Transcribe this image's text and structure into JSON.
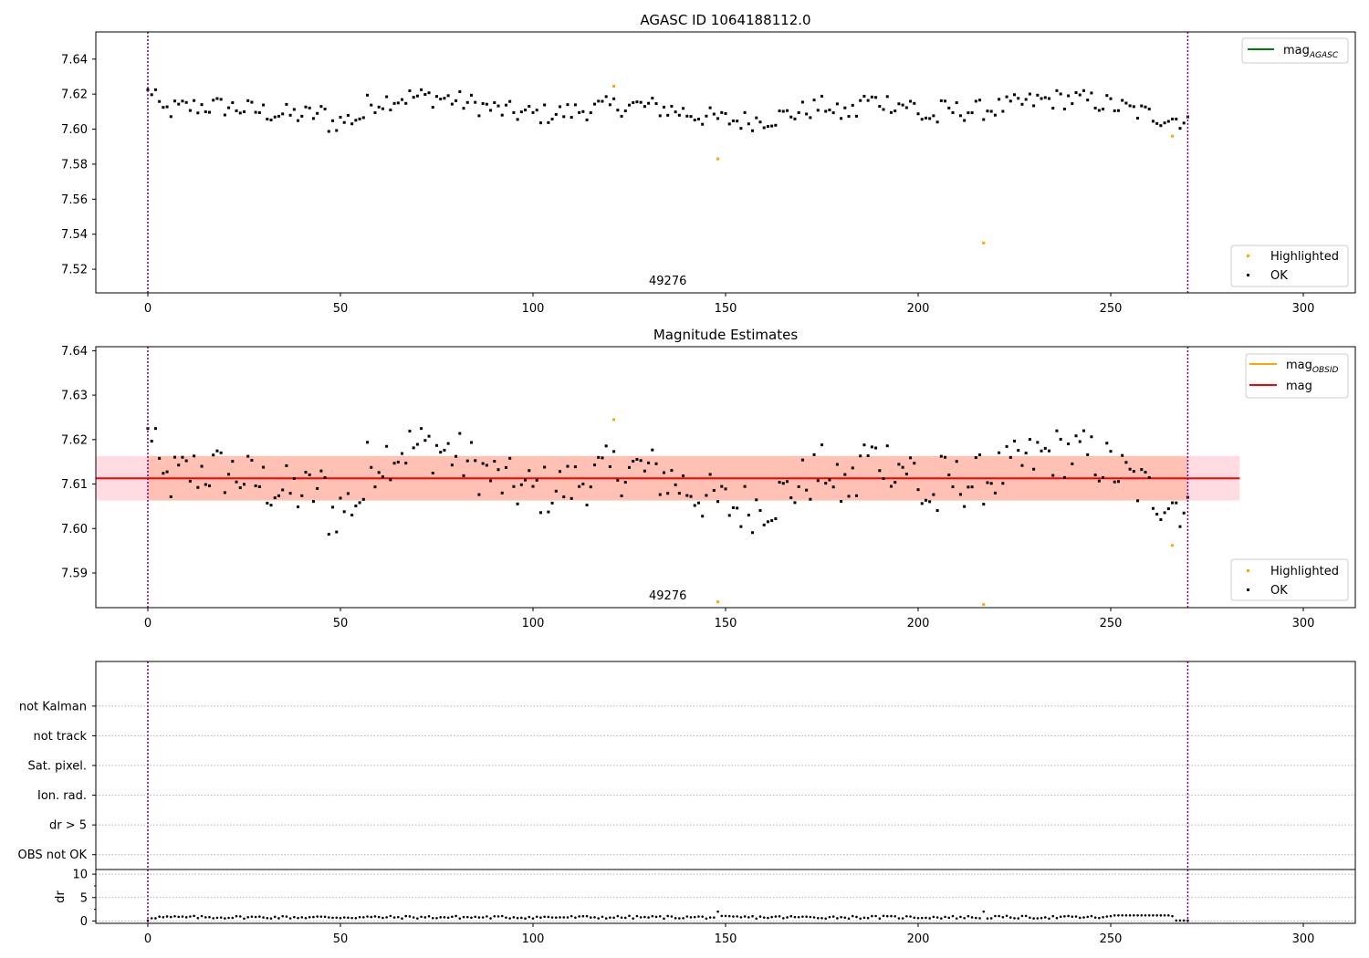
{
  "colors": {
    "ok": "#000000",
    "highlighted": "#ffa500",
    "mag_agasc": "#008000",
    "mag_obsid": "#ffa500",
    "mag": "#ff0000",
    "band_red": "#ffc0cb",
    "band_orange": "#ffa07a",
    "obs_boundary": "#800080",
    "grid": "#b0b0b0"
  },
  "chart_data": [
    {
      "type": "scatter",
      "title": "AGASC ID 1064188112.0",
      "xlim": [
        -13.5,
        313.5
      ],
      "ylim": [
        7.5065,
        7.6555
      ],
      "xticks": [
        0,
        50,
        100,
        150,
        200,
        250,
        300
      ],
      "yticks": [
        7.52,
        7.54,
        7.56,
        7.58,
        7.6,
        7.62,
        7.64
      ],
      "ytick_labels": [
        "7.52",
        "7.54",
        "7.56",
        "7.58",
        "7.60",
        "7.62",
        "7.64"
      ],
      "obsid_label": "49276",
      "obsid_label_x": 135,
      "obs_boundaries": [
        0,
        270
      ],
      "line_legend": [
        {
          "name": "mag",
          "sub": "AGASC",
          "color_key": "mag_agasc"
        }
      ],
      "point_legend": [
        {
          "name": "Highlighted",
          "color_key": "highlighted"
        },
        {
          "name": "OK",
          "color_key": "ok"
        }
      ],
      "highlighted_points": [
        [
          121,
          7.6245
        ],
        [
          148,
          7.583
        ],
        [
          217,
          7.535
        ],
        [
          266,
          7.596
        ]
      ]
    },
    {
      "type": "scatter",
      "title": "Magnitude Estimates",
      "xlim": [
        -13.5,
        313.5
      ],
      "ylim": [
        7.5822,
        7.6409
      ],
      "xticks": [
        0,
        50,
        100,
        150,
        200,
        250,
        300
      ],
      "yticks": [
        7.59,
        7.6,
        7.61,
        7.62,
        7.63,
        7.64
      ],
      "ytick_labels": [
        "7.59",
        "7.60",
        "7.61",
        "7.62",
        "7.63",
        "7.64"
      ],
      "obsid_label": "49276",
      "obsid_label_x": 135,
      "obs_boundaries": [
        0,
        270
      ],
      "mag_line": {
        "value": 7.6113,
        "x": [
          -13.5,
          283.5
        ]
      },
      "mag_band": {
        "low": 7.6063,
        "high": 7.6163,
        "x": [
          -13.5,
          283.5
        ]
      },
      "obsid_band": {
        "low": 7.6063,
        "high": 7.6163,
        "x": [
          0,
          270
        ]
      },
      "line_legend": [
        {
          "name": "mag",
          "sub": "OBSID",
          "color_key": "mag_obsid"
        },
        {
          "name": "mag",
          "sub": "",
          "color_key": "mag"
        }
      ],
      "point_legend": [
        {
          "name": "Highlighted",
          "color_key": "highlighted"
        },
        {
          "name": "OK",
          "color_key": "ok"
        }
      ],
      "highlighted_points": [
        [
          121,
          7.6245
        ],
        [
          148,
          7.5835
        ],
        [
          217,
          7.5829
        ],
        [
          266,
          7.5962
        ]
      ]
    },
    {
      "type": "scatter",
      "title": "",
      "xlim": [
        -13.5,
        313.5
      ],
      "ylim": [
        -0.5,
        6.5
      ],
      "flag_labels": [
        "not Kalman",
        "not track",
        "Sat. pixel.",
        "Ion. rad.",
        "dr > 5",
        "OBS not OK"
      ],
      "obs_boundaries": [
        0,
        270
      ]
    },
    {
      "type": "scatter",
      "title": "",
      "ylabel": "dr",
      "xlim": [
        -13.5,
        313.5
      ],
      "ylim": [
        -0.5,
        11
      ],
      "xticks": [
        0,
        50,
        100,
        150,
        200,
        250,
        300
      ],
      "yticks": [
        0,
        5,
        10
      ],
      "ytick_labels": [
        "0",
        "5",
        "10"
      ],
      "obs_boundaries": [
        0,
        270
      ]
    }
  ]
}
